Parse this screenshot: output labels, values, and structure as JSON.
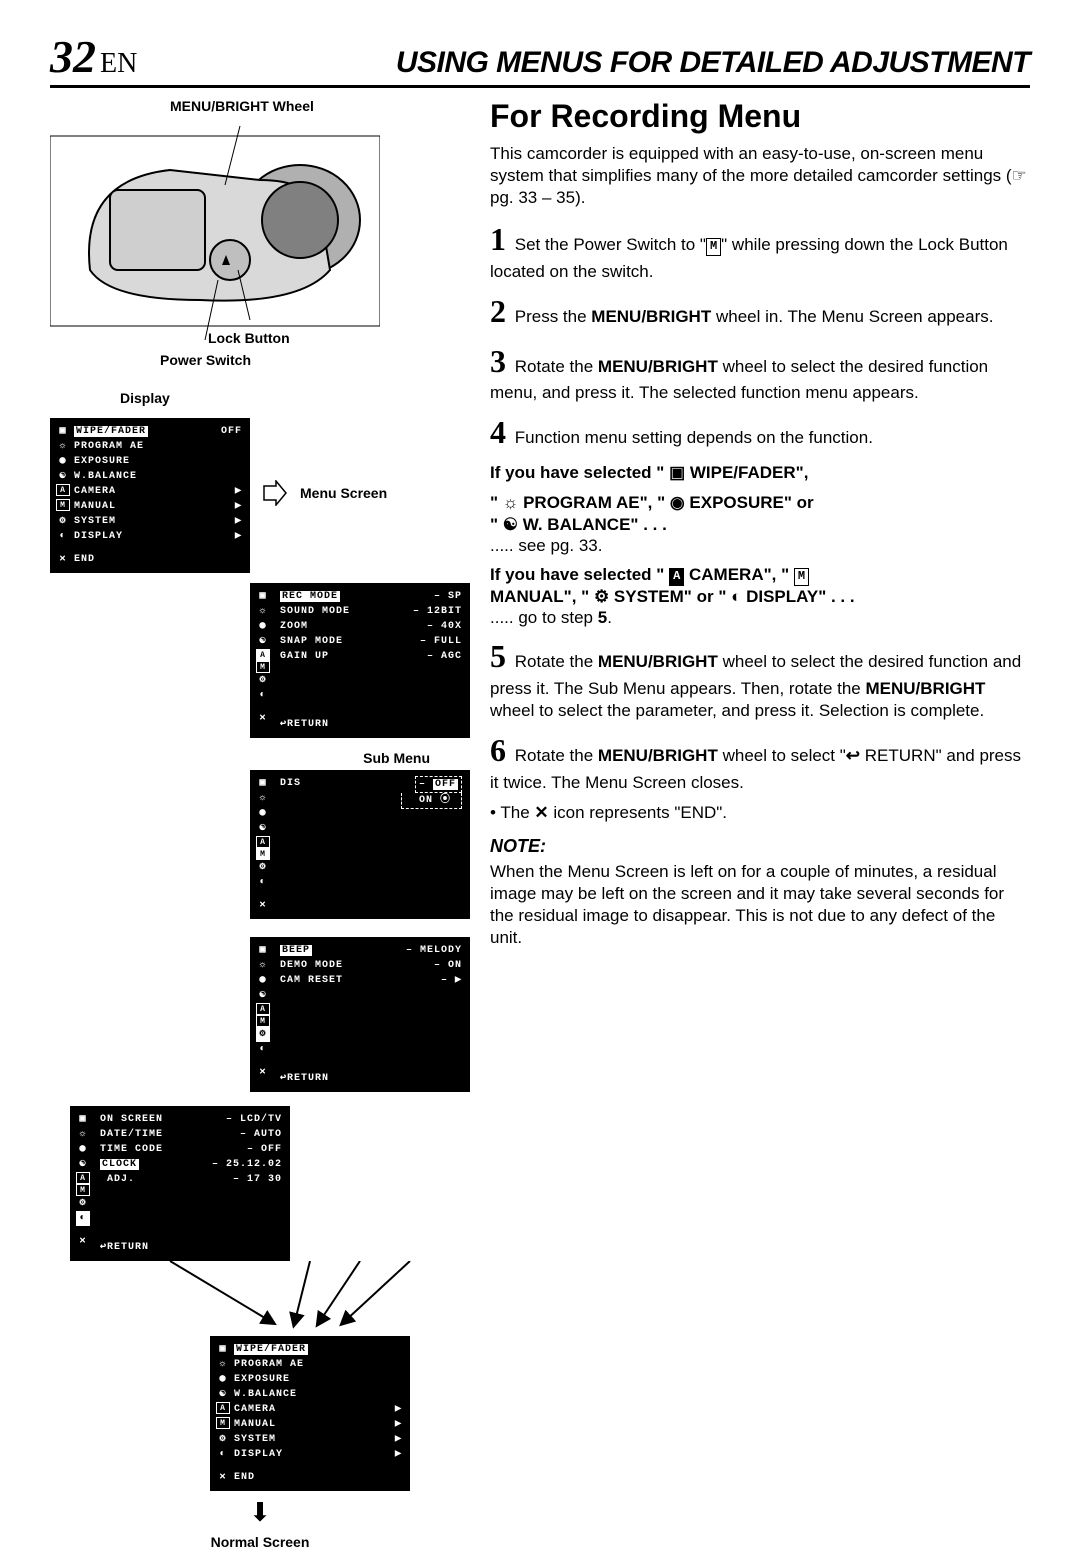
{
  "header": {
    "page_number": "32",
    "lang": "EN",
    "title": "USING MENUS FOR DETAILED ADJUSTMENT"
  },
  "left": {
    "label_menu_wheel": "MENU/BRIGHT Wheel",
    "label_lock_button": "Lock Button",
    "label_power_switch": "Power Switch",
    "label_display": "Display",
    "label_menu_screen": "Menu Screen",
    "label_sub_menu": "Sub Menu",
    "label_normal_screen": "Normal Screen",
    "display_menu": {
      "rows": [
        {
          "icon": "▣",
          "label": "WIPE/FADER",
          "suffix": "OFF",
          "hl_label": true
        },
        {
          "icon": "☼",
          "label": "PROGRAM AE",
          "suffix": ""
        },
        {
          "icon": "◉",
          "label": "EXPOSURE",
          "suffix": ""
        },
        {
          "icon": "☯",
          "label": "W.BALANCE",
          "suffix": ""
        },
        {
          "icon": "A",
          "boxed": true,
          "label": "CAMERA",
          "suffix": "▶"
        },
        {
          "icon": "M",
          "boxed": true,
          "label": "MANUAL",
          "suffix": "▶"
        },
        {
          "icon": "⚙",
          "label": "SYSTEM",
          "suffix": "▶"
        },
        {
          "icon": "◐",
          "label": "DISPLAY",
          "suffix": "▶"
        }
      ],
      "end_icon": "✕",
      "end_label": "END"
    },
    "menu_screen": {
      "rows": [
        {
          "hl": true,
          "label": "REC MODE",
          "val": "SP"
        },
        {
          "label": "SOUND MODE",
          "val": "12BIT"
        },
        {
          "label": "ZOOM",
          "val": "40X"
        },
        {
          "label": "SNAP MODE",
          "val": "FULL"
        },
        {
          "label": "GAIN UP",
          "val": "AGC"
        }
      ],
      "return": "RETURN"
    },
    "sub_menu": {
      "label": "DIS",
      "opt_off": "OFF",
      "opt_on": "ON"
    },
    "system_menu": {
      "rows": [
        {
          "label": "BEEP",
          "val": "MELODY",
          "hl": true
        },
        {
          "label": "DEMO MODE",
          "val": "ON"
        },
        {
          "label": "CAM RESET",
          "val": "▶"
        }
      ],
      "return": "RETURN"
    },
    "display_submenu": {
      "rows": [
        {
          "label": "ON SCREEN",
          "val": "LCD/TV"
        },
        {
          "label": "DATE/TIME",
          "val": "AUTO"
        },
        {
          "label": "TIME CODE",
          "val": "OFF"
        },
        {
          "label": "CLOCK",
          "val": "25.12.02",
          "hl": true
        },
        {
          "label": " ADJ.",
          "val": "17 30"
        }
      ],
      "return": "RETURN"
    },
    "normal_screen": {
      "rows": [
        {
          "icon": "▣",
          "label": "WIPE/FADER",
          "hl_label": true
        },
        {
          "icon": "☼",
          "label": "PROGRAM AE"
        },
        {
          "icon": "◉",
          "label": "EXPOSURE"
        },
        {
          "icon": "☯",
          "label": "W.BALANCE"
        },
        {
          "icon": "A",
          "boxed": true,
          "label": "CAMERA",
          "suffix": "▶"
        },
        {
          "icon": "M",
          "boxed": true,
          "label": "MANUAL",
          "suffix": "▶"
        },
        {
          "icon": "⚙",
          "label": "SYSTEM",
          "suffix": "▶"
        },
        {
          "icon": "◐",
          "label": "DISPLAY",
          "suffix": "▶"
        }
      ],
      "end_icon": "✕",
      "end_label": "END"
    }
  },
  "right": {
    "section_title": "For Recording Menu",
    "intro_a": "This camcorder is equipped with an easy-to-use, on-screen menu system that simplifies many of the more detailed camcorder settings (",
    "intro_ref": "☞",
    "intro_b": " pg. 33 – 35).",
    "step1_a": "Set the Power Switch to \"",
    "step1_b": "\" while pressing down the Lock Button located on the switch.",
    "step2_a": "Press the ",
    "step2_bold": "MENU/BRIGHT",
    "step2_b": " wheel in. The Menu Screen appears.",
    "step3_a": "Rotate the ",
    "step3_bold": "MENU/BRIGHT",
    "step3_b": " wheel to select the desired function menu, and press it. The selected function menu appears.",
    "step4": "Function menu setting depends on the function.",
    "sel1_line1": "If you have selected \" ▣  WIPE/FADER\",",
    "sel1_line2": "\" ☼  PROGRAM AE\", \" ◉  EXPOSURE\" or",
    "sel1_line3": "\" ☯  W. BALANCE\" . . .",
    "sel1_dots": "..... see pg. 33.",
    "sel2_line1_a": "If you have selected \" ",
    "sel2_line1_cam": "A",
    "sel2_line1_b": "  CAMERA\", \" ",
    "sel2_line1_man": "M",
    "sel2_line2": "MANUAL\", \" ⚙  SYSTEM\" or \" ◐  DISPLAY\" . . .",
    "sel2_dots_a": "..... go to step ",
    "sel2_dots_b": "5",
    "sel2_dots_c": ".",
    "step5_a": "Rotate the ",
    "step5_bold": "MENU/BRIGHT",
    "step5_b": " wheel to select the desired function and press it. The Sub Menu appears. Then, rotate the ",
    "step5_bold2": "MENU/BRIGHT",
    "step5_c": " wheel to select the parameter, and press it. Selection is complete.",
    "step6_a": "Rotate the ",
    "step6_bold": "MENU/BRIGHT",
    "step6_b": " wheel to select \"",
    "step6_c": " RETURN\" and press it twice. The Menu Screen closes.",
    "step6_bullet_a": "• The ",
    "step6_bullet_b": " icon represents \"END\".",
    "note_title": "NOTE:",
    "note_body": "When the Menu Screen is left on for a couple of minutes, a residual image may be left on the screen and it may take several seconds for the residual image to disappear. This is not due to any defect of the unit."
  },
  "style": {
    "colors": {
      "text": "#000000",
      "bg": "#ffffff",
      "menu_bg": "#000000",
      "menu_fg": "#ffffff",
      "hl_bg": "#ffffff",
      "hl_fg": "#000000"
    },
    "fonts": {
      "serif_italic_size": 46,
      "header_title_size": 30,
      "section_title_size": 32,
      "body_size": 17,
      "step_num_size": 32,
      "label_size": 14,
      "menu_size": 10
    }
  }
}
